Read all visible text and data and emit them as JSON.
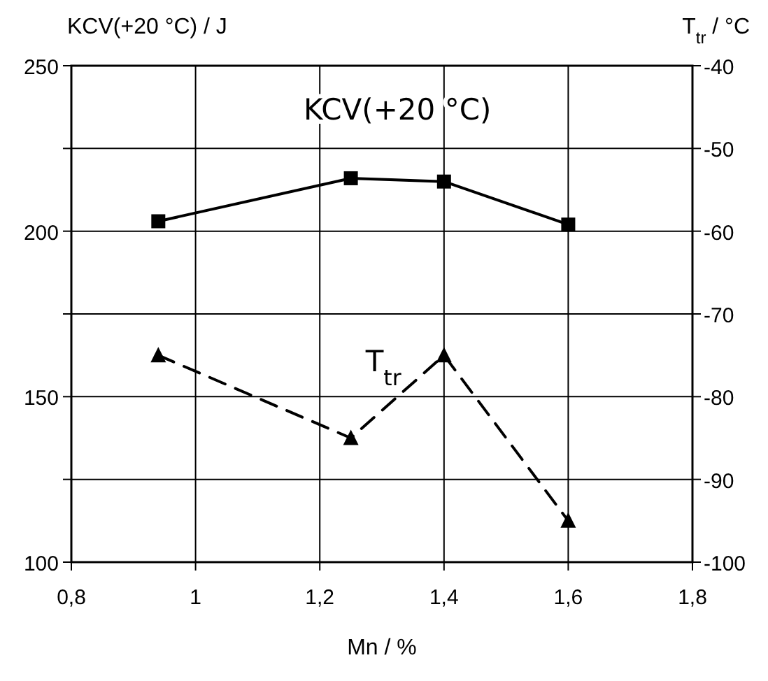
{
  "chart_data": {
    "type": "line",
    "xlabel": "Mn / %",
    "ylabel": "KCV(+20 °C) / J",
    "y2label": "T$_{tr}$ / °C",
    "x": [
      0.94,
      1.25,
      1.4,
      1.6
    ],
    "series": [
      {
        "name": "KCV(+20 °C)",
        "color": "#000000",
        "values": [
          203,
          216,
          215,
          202
        ],
        "marker": "square",
        "line_style": "solid"
      },
      {
        "name": "T$_{tr}$",
        "color": "#000000",
        "values": [
          -75,
          -85,
          -75,
          -95
        ],
        "axis": "y2",
        "marker": "triangle",
        "line_style": "dashed"
      }
    ],
    "xlim": [
      0.8,
      1.8
    ],
    "xticks": [
      {
        "value": 0.8,
        "label": "0,8"
      },
      1,
      {
        "value": 1.2,
        "label": "1,2"
      },
      {
        "value": 1.4,
        "label": "1,4"
      },
      {
        "value": 1.6,
        "label": "1,6"
      },
      {
        "value": 1.8,
        "label": "1,8"
      }
    ],
    "ylim": [
      100,
      250
    ],
    "yticks": [
      100,
      {
        "value": 125,
        "label": null
      },
      150,
      {
        "value": 175,
        "label": null
      },
      200,
      {
        "value": 225,
        "label": null
      },
      250
    ],
    "y2lim": [
      -100,
      -40
    ],
    "y2ticks": [
      -100,
      -90,
      -80,
      -70,
      -60,
      -50,
      -40
    ],
    "grid": true
  }
}
